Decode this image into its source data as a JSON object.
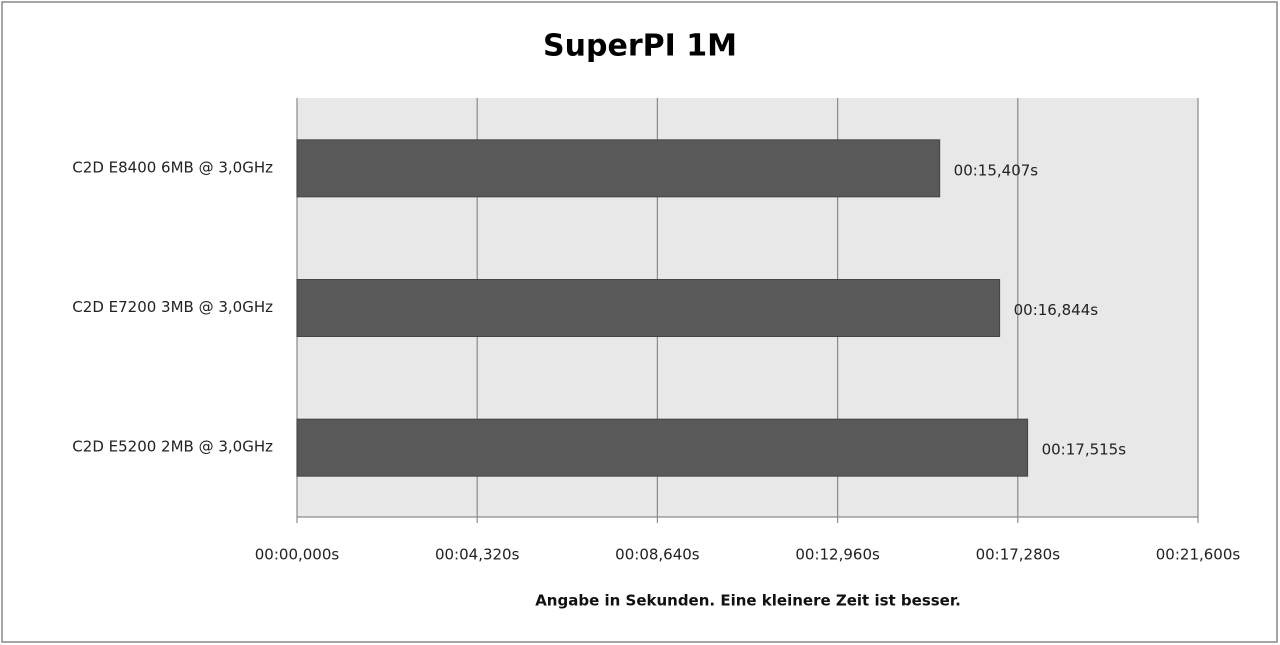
{
  "chart_data": {
    "type": "bar",
    "horizontal": true,
    "title": "SuperPI 1M",
    "x_label": "Angabe in Sekunden. Eine kleinere Zeit ist besser.",
    "categories": [
      "C2D E8400 6MB @ 3,0GHz",
      "C2D E7200 3MB @ 3,0GHz",
      "C2D E5200 2MB @ 3,0GHz"
    ],
    "values": [
      15.407,
      16.844,
      17.515
    ],
    "value_labels": [
      "00:15,407s",
      "00:16,844s",
      "00:17,515s"
    ],
    "color": "#595959",
    "xlim": [
      0,
      21.6
    ],
    "xticks": [
      {
        "value": 0,
        "label": "00:00,000s"
      },
      {
        "value": 4.32,
        "label": "00:04,320s"
      },
      {
        "value": 8.64,
        "label": "00:08,640s"
      },
      {
        "value": 12.96,
        "label": "00:12,960s"
      },
      {
        "value": 17.28,
        "label": "00:17,280s"
      },
      {
        "value": 21.6,
        "label": "00:21,600s"
      }
    ],
    "grid": true
  }
}
